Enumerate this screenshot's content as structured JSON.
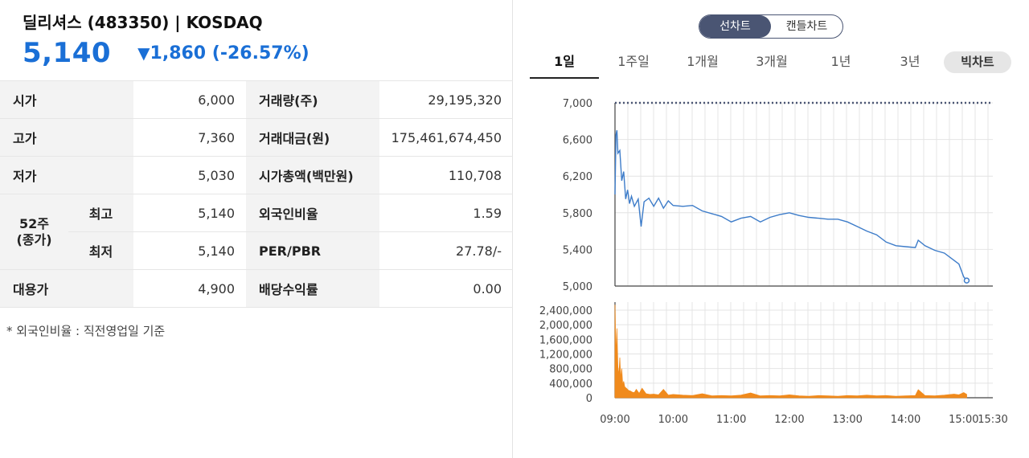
{
  "stock": {
    "title": "딜리셔스 (483350) | KOSDAQ",
    "price": "5,140",
    "change_icon": "down-triangle-icon",
    "change_arrow": "▼",
    "change": "1,860",
    "change_pct": "(-26.57%)",
    "color_down": "#1a6fd6"
  },
  "table": {
    "open_label": "시가",
    "open_value": "6,000",
    "volume_label": "거래량(주)",
    "volume_value": "29,195,320",
    "high_label": "고가",
    "high_value": "7,360",
    "amount_label": "거래대금(원)",
    "amount_value": "175,461,674,450",
    "low_label": "저가",
    "low_value": "5,030",
    "mcap_label": "시가총액(백만원)",
    "mcap_value": "110,708",
    "w52_label_1": "52주",
    "w52_label_2": "(종가)",
    "w52_high_label": "최고",
    "w52_high_value": "5,140",
    "foreign_label": "외국인비율",
    "foreign_value": "1.59",
    "w52_low_label": "최저",
    "w52_low_value": "5,140",
    "perpbr_label": "PER/PBR",
    "perpbr_value": "27.78/-",
    "sub_label": "대용가",
    "sub_value": "4,900",
    "yield_label": "배당수익률",
    "yield_value": "0.00"
  },
  "note": "* 외국인비율 : 직전영업일 기준",
  "chart_controls": {
    "line_chart": "선차트",
    "candle_chart": "캔들차트",
    "periods": [
      "1일",
      "1주일",
      "1개월",
      "3개월",
      "1년",
      "3년"
    ],
    "active_period": "1일",
    "big_chart": "빅차트"
  },
  "chart_data": [
    {
      "type": "line",
      "title": "",
      "y_ticks": [
        "7,000",
        "6,600",
        "6,200",
        "5,800",
        "5,400",
        "5,000"
      ],
      "ylim": [
        5000,
        7000
      ],
      "xlim": [
        "09:00",
        "15:30"
      ],
      "reference_line": 7000,
      "line_color": "#3d7cc9",
      "grid": true,
      "points": [
        [
          "09:00",
          6000
        ],
        [
          "09:01",
          6650
        ],
        [
          "09:02",
          6700
        ],
        [
          "09:03",
          6450
        ],
        [
          "09:05",
          6480
        ],
        [
          "09:07",
          6150
        ],
        [
          "09:09",
          6250
        ],
        [
          "09:11",
          5950
        ],
        [
          "09:13",
          6050
        ],
        [
          "09:15",
          5900
        ],
        [
          "09:17",
          5980
        ],
        [
          "09:20",
          5870
        ],
        [
          "09:24",
          5950
        ],
        [
          "09:27",
          5650
        ],
        [
          "09:30",
          5920
        ],
        [
          "09:35",
          5960
        ],
        [
          "09:40",
          5870
        ],
        [
          "09:45",
          5960
        ],
        [
          "09:50",
          5850
        ],
        [
          "09:55",
          5930
        ],
        [
          "10:00",
          5880
        ],
        [
          "10:10",
          5870
        ],
        [
          "10:20",
          5880
        ],
        [
          "10:30",
          5820
        ],
        [
          "10:40",
          5790
        ],
        [
          "10:50",
          5760
        ],
        [
          "11:00",
          5700
        ],
        [
          "11:10",
          5740
        ],
        [
          "11:20",
          5760
        ],
        [
          "11:30",
          5700
        ],
        [
          "11:40",
          5750
        ],
        [
          "11:50",
          5780
        ],
        [
          "12:00",
          5800
        ],
        [
          "12:10",
          5770
        ],
        [
          "12:20",
          5750
        ],
        [
          "12:30",
          5740
        ],
        [
          "12:40",
          5730
        ],
        [
          "12:50",
          5730
        ],
        [
          "13:00",
          5700
        ],
        [
          "13:10",
          5650
        ],
        [
          "13:20",
          5600
        ],
        [
          "13:30",
          5560
        ],
        [
          "13:40",
          5480
        ],
        [
          "13:50",
          5440
        ],
        [
          "14:00",
          5430
        ],
        [
          "14:10",
          5420
        ],
        [
          "14:13",
          5500
        ],
        [
          "14:20",
          5440
        ],
        [
          "14:30",
          5390
        ],
        [
          "14:40",
          5360
        ],
        [
          "14:50",
          5280
        ],
        [
          "14:55",
          5240
        ],
        [
          "15:00",
          5100
        ],
        [
          "15:03",
          5060
        ]
      ]
    },
    {
      "type": "bar",
      "title": "",
      "y_ticks": [
        "2,400,000",
        "2,000,000",
        "1,600,000",
        "1,200,000",
        "800,000",
        "400,000",
        "0"
      ],
      "ylim": [
        0,
        2400000
      ],
      "x_ticks": [
        "09:00",
        "10:00",
        "11:00",
        "12:00",
        "13:00",
        "14:00",
        "15:00",
        "15:30"
      ],
      "bar_color": "#f08a1c",
      "values": [
        [
          "09:00",
          2550000
        ],
        [
          "09:01",
          1100000
        ],
        [
          "09:02",
          1900000
        ],
        [
          "09:03",
          850000
        ],
        [
          "09:04",
          600000
        ],
        [
          "09:05",
          1100000
        ],
        [
          "09:06",
          500000
        ],
        [
          "09:07",
          800000
        ],
        [
          "09:08",
          350000
        ],
        [
          "09:09",
          450000
        ],
        [
          "09:10",
          300000
        ],
        [
          "09:12",
          250000
        ],
        [
          "09:14",
          200000
        ],
        [
          "09:16",
          180000
        ],
        [
          "09:18",
          150000
        ],
        [
          "09:20",
          140000
        ],
        [
          "09:22",
          230000
        ],
        [
          "09:25",
          120000
        ],
        [
          "09:28",
          260000
        ],
        [
          "09:32",
          110000
        ],
        [
          "09:36",
          90000
        ],
        [
          "09:40",
          100000
        ],
        [
          "09:45",
          80000
        ],
        [
          "09:50",
          230000
        ],
        [
          "09:55",
          70000
        ],
        [
          "10:00",
          90000
        ],
        [
          "10:10",
          70000
        ],
        [
          "10:20",
          60000
        ],
        [
          "10:30",
          110000
        ],
        [
          "10:40",
          50000
        ],
        [
          "10:50",
          60000
        ],
        [
          "11:00",
          50000
        ],
        [
          "11:10",
          70000
        ],
        [
          "11:20",
          130000
        ],
        [
          "11:30",
          50000
        ],
        [
          "11:40",
          60000
        ],
        [
          "11:50",
          50000
        ],
        [
          "12:00",
          80000
        ],
        [
          "12:10",
          50000
        ],
        [
          "12:20",
          40000
        ],
        [
          "12:30",
          60000
        ],
        [
          "12:40",
          50000
        ],
        [
          "12:50",
          40000
        ],
        [
          "13:00",
          60000
        ],
        [
          "13:10",
          50000
        ],
        [
          "13:20",
          70000
        ],
        [
          "13:30",
          50000
        ],
        [
          "13:40",
          60000
        ],
        [
          "13:50",
          40000
        ],
        [
          "14:00",
          50000
        ],
        [
          "14:10",
          60000
        ],
        [
          "14:13",
          220000
        ],
        [
          "14:20",
          60000
        ],
        [
          "14:30",
          50000
        ],
        [
          "14:40",
          70000
        ],
        [
          "14:50",
          100000
        ],
        [
          "14:55",
          80000
        ],
        [
          "15:00",
          140000
        ],
        [
          "15:03",
          90000
        ]
      ]
    }
  ]
}
